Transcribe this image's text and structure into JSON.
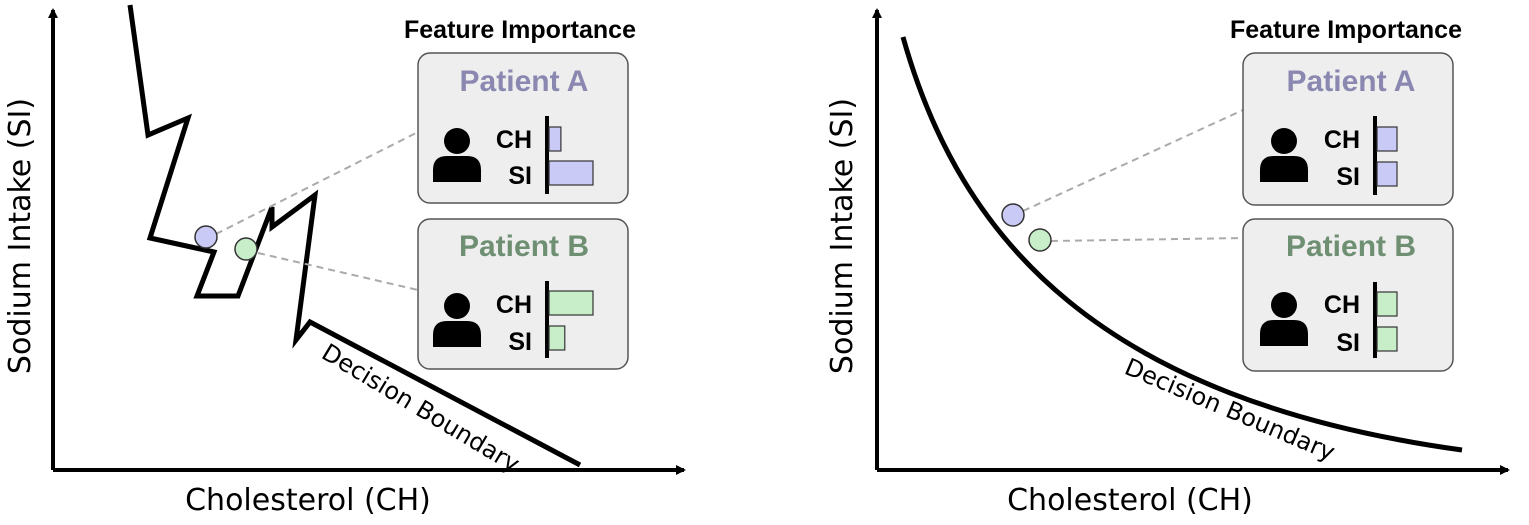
{
  "colors": {
    "patient_a": "#8a88b0",
    "patient_a_fill": "#c9caf5",
    "patient_b": "#6f8f73",
    "patient_b_fill": "#c8edc9",
    "card_bg": "#eeeeee",
    "card_border": "#555555",
    "leader_line": "#aaaaaa"
  },
  "panels": [
    {
      "id": "left",
      "xlabel": "Cholesterol (CH)",
      "ylabel": "Sodium Intake (SI)",
      "boundary_label": "Decision Boundary",
      "feature_importance_title": "Feature Importance",
      "cards": [
        {
          "title": "Patient A",
          "person_icon": "person-icon",
          "features": [
            {
              "label": "CH",
              "importance": 0.27
            },
            {
              "label": "SI",
              "importance": 1.0
            }
          ]
        },
        {
          "title": "Patient B",
          "person_icon": "person-icon",
          "features": [
            {
              "label": "CH",
              "importance": 1.0
            },
            {
              "label": "SI",
              "importance": 0.36
            }
          ]
        }
      ]
    },
    {
      "id": "right",
      "xlabel": "Cholesterol (CH)",
      "ylabel": "Sodium Intake (SI)",
      "boundary_label": "Decision Boundary",
      "feature_importance_title": "Feature Importance",
      "cards": [
        {
          "title": "Patient A",
          "person_icon": "person-icon",
          "features": [
            {
              "label": "CH",
              "importance": 1.0
            },
            {
              "label": "SI",
              "importance": 1.0
            }
          ]
        },
        {
          "title": "Patient B",
          "person_icon": "person-icon",
          "features": [
            {
              "label": "CH",
              "importance": 1.0
            },
            {
              "label": "SI",
              "importance": 1.0
            }
          ]
        }
      ]
    }
  ]
}
